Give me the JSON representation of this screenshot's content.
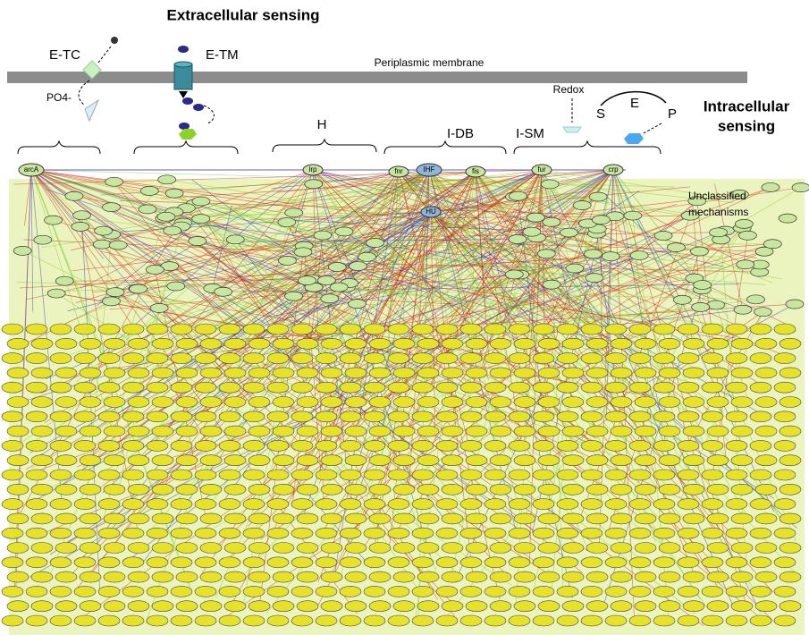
{
  "header": {
    "title": "Extracellular sensing",
    "intracellular": [
      "Intracellular",
      "sensing"
    ]
  },
  "membrane": {
    "label": "Periplasmic membrane"
  },
  "sensors": [
    {
      "label": "E-TC"
    },
    {
      "label": "E-TM"
    },
    {
      "label": "PO4-"
    },
    {
      "label": "Redox"
    }
  ],
  "reaction": {
    "substrate": "S",
    "enzyme": "E",
    "product": "P"
  },
  "groups": [
    {
      "label": "H"
    },
    {
      "label": "I-DB"
    },
    {
      "label": "I-SM"
    }
  ],
  "unclassified": [
    "Unclassified",
    "mechanisms"
  ],
  "nodes": [
    {
      "label": "arcA"
    },
    {
      "label": "lrp"
    },
    {
      "label": "fnr"
    },
    {
      "label": "IHF"
    },
    {
      "label": "fis"
    },
    {
      "label": "fur"
    },
    {
      "label": "crp"
    },
    {
      "label": "HU"
    }
  ]
}
